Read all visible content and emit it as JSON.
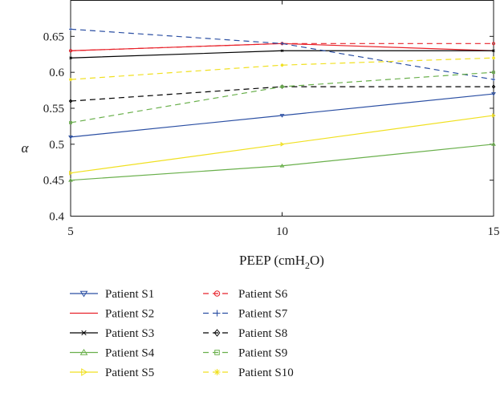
{
  "chart_data": {
    "type": "line",
    "title": "",
    "xlabel": "PEEP (cmH",
    "xlabel_sub": "2",
    "xlabel_end": "O)",
    "ylabel": "α",
    "x": [
      5,
      10,
      15
    ],
    "x_tick_labels": [
      "5",
      "10",
      "15"
    ],
    "xlim": [
      5,
      15
    ],
    "ylim": [
      0.4,
      0.7
    ],
    "y_ticks": [
      0.4,
      0.45,
      0.5,
      0.55,
      0.6,
      0.65
    ],
    "y_tick_labels": [
      "0.4",
      "0.45",
      "0.5",
      "0.55",
      "0.6",
      "0.65"
    ],
    "grid": false,
    "legend_position": "below",
    "series": [
      {
        "name": "Patient S1",
        "values": [
          0.51,
          0.54,
          0.57
        ],
        "color": "#2b4fa3",
        "dash": "solid",
        "marker": "triangle-down"
      },
      {
        "name": "Patient S2",
        "values": [
          0.63,
          0.64,
          0.63
        ],
        "color": "#e8222a",
        "dash": "solid",
        "marker": "none"
      },
      {
        "name": "Patient S3",
        "values": [
          0.62,
          0.63,
          0.63
        ],
        "color": "#000000",
        "dash": "solid",
        "marker": "x"
      },
      {
        "name": "Patient S4",
        "values": [
          0.45,
          0.47,
          0.5
        ],
        "color": "#6ab04c",
        "dash": "solid",
        "marker": "triangle-up"
      },
      {
        "name": "Patient S5",
        "values": [
          0.46,
          0.5,
          0.54
        ],
        "color": "#f0e020",
        "dash": "solid",
        "marker": "triangle-right"
      },
      {
        "name": "Patient S6",
        "values": [
          0.63,
          0.64,
          0.64
        ],
        "color": "#e8222a",
        "dash": "dashed",
        "marker": "circle"
      },
      {
        "name": "Patient S7",
        "values": [
          0.66,
          0.64,
          0.59
        ],
        "color": "#2b4fa3",
        "dash": "dashed",
        "marker": "plus"
      },
      {
        "name": "Patient S8",
        "values": [
          0.56,
          0.58,
          0.58
        ],
        "color": "#000000",
        "dash": "dashed",
        "marker": "diamond"
      },
      {
        "name": "Patient S9",
        "values": [
          0.53,
          0.58,
          0.6
        ],
        "color": "#6ab04c",
        "dash": "dashed",
        "marker": "square"
      },
      {
        "name": "Patient S10",
        "values": [
          0.59,
          0.61,
          0.62
        ],
        "color": "#f0e020",
        "dash": "dashed",
        "marker": "asterisk"
      }
    ]
  }
}
